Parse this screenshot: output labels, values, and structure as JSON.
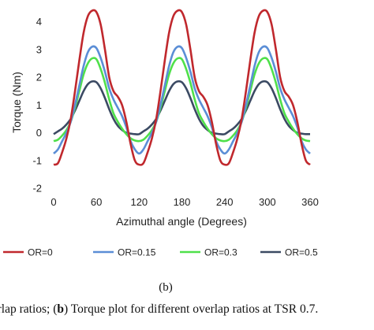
{
  "chart_data": {
    "type": "line",
    "xlabel": "Azimuthal angle (Degrees)",
    "ylabel": "Torque (Nm)",
    "xlim": [
      0,
      360
    ],
    "ylim": [
      -2,
      4.5
    ],
    "xticks": [
      "0",
      "60",
      "120",
      "180",
      "240",
      "300",
      "360"
    ],
    "yticks": [
      "-2",
      "-1",
      "0",
      "1",
      "2",
      "3",
      "4"
    ],
    "grid": false,
    "legend_position": "bottom",
    "x": [
      0,
      6,
      12,
      18,
      24,
      30,
      36,
      42,
      48,
      54,
      60,
      66,
      72,
      78,
      84,
      90,
      96,
      102,
      108,
      114,
      120,
      126,
      132,
      138,
      144,
      150,
      156,
      162,
      168,
      174,
      180,
      186,
      192,
      198,
      204,
      210,
      216,
      222,
      228,
      234,
      240,
      246,
      252,
      258,
      264,
      270,
      276,
      282,
      288,
      294,
      300,
      306,
      312,
      318,
      324,
      330,
      336,
      342,
      348,
      354,
      360
    ],
    "series": [
      {
        "name": "OR=0",
        "color": "#c0282d",
        "values": [
          -1.15,
          -1.1,
          -0.7,
          -0.2,
          0.5,
          1.5,
          2.6,
          3.6,
          4.2,
          4.4,
          4.35,
          3.9,
          3.0,
          2.0,
          1.5,
          1.3,
          1.0,
          0.4,
          -0.4,
          -1.0,
          -1.15,
          -1.1,
          -0.7,
          -0.2,
          0.5,
          1.5,
          2.6,
          3.6,
          4.2,
          4.4,
          4.35,
          3.9,
          3.0,
          2.0,
          1.5,
          1.3,
          1.0,
          0.4,
          -0.4,
          -1.0,
          -1.15,
          -1.1,
          -0.7,
          -0.2,
          0.5,
          1.5,
          2.6,
          3.6,
          4.2,
          4.4,
          4.35,
          3.9,
          3.0,
          2.0,
          1.5,
          1.3,
          1.0,
          0.4,
          -0.4,
          -1.0,
          -1.15
        ]
      },
      {
        "name": "OR=0.15",
        "color": "#5b8ed6",
        "values": [
          -0.75,
          -0.6,
          -0.3,
          0.0,
          0.4,
          1.0,
          1.7,
          2.4,
          2.9,
          3.1,
          3.05,
          2.7,
          2.2,
          1.6,
          1.2,
          0.9,
          0.6,
          0.2,
          -0.3,
          -0.6,
          -0.75,
          -0.6,
          -0.3,
          0.0,
          0.4,
          1.0,
          1.7,
          2.4,
          2.9,
          3.1,
          3.05,
          2.7,
          2.2,
          1.6,
          1.2,
          0.9,
          0.6,
          0.2,
          -0.3,
          -0.6,
          -0.75,
          -0.6,
          -0.3,
          0.0,
          0.4,
          1.0,
          1.7,
          2.4,
          2.9,
          3.1,
          3.05,
          2.7,
          2.2,
          1.6,
          1.2,
          0.9,
          0.6,
          0.2,
          -0.3,
          -0.6,
          -0.75
        ]
      },
      {
        "name": "OR=0.3",
        "color": "#4fe04a",
        "values": [
          -0.3,
          -0.25,
          -0.1,
          0.1,
          0.4,
          0.9,
          1.5,
          2.1,
          2.5,
          2.68,
          2.65,
          2.3,
          1.8,
          1.2,
          0.7,
          0.4,
          0.15,
          -0.05,
          -0.2,
          -0.28,
          -0.3,
          -0.25,
          -0.1,
          0.1,
          0.4,
          0.9,
          1.5,
          2.1,
          2.5,
          2.68,
          2.65,
          2.3,
          1.8,
          1.2,
          0.7,
          0.4,
          0.15,
          -0.05,
          -0.2,
          -0.28,
          -0.3,
          -0.25,
          -0.1,
          0.1,
          0.4,
          0.9,
          1.5,
          2.1,
          2.5,
          2.68,
          2.65,
          2.3,
          1.8,
          1.2,
          0.7,
          0.4,
          0.15,
          -0.05,
          -0.2,
          -0.28,
          -0.3
        ]
      },
      {
        "name": "OR=0.5",
        "color": "#3b4a63",
        "values": [
          -0.05,
          0.05,
          0.15,
          0.3,
          0.5,
          0.8,
          1.15,
          1.5,
          1.75,
          1.85,
          1.82,
          1.6,
          1.25,
          0.85,
          0.5,
          0.25,
          0.1,
          0.0,
          -0.03,
          -0.05,
          -0.05,
          0.05,
          0.15,
          0.3,
          0.5,
          0.8,
          1.15,
          1.5,
          1.75,
          1.85,
          1.82,
          1.6,
          1.25,
          0.85,
          0.5,
          0.25,
          0.1,
          0.0,
          -0.03,
          -0.05,
          -0.05,
          0.05,
          0.15,
          0.3,
          0.5,
          0.8,
          1.15,
          1.5,
          1.75,
          1.85,
          1.82,
          1.6,
          1.25,
          0.85,
          0.5,
          0.25,
          0.1,
          0.0,
          -0.03,
          -0.05,
          -0.05
        ]
      }
    ]
  },
  "panel_label": {
    "letter": "(b)"
  },
  "caption": {
    "text_before": "verlap ratios; (",
    "bold": "b",
    "text_after": ") Torque plot for different overlap ratios at TSR 0.7."
  }
}
